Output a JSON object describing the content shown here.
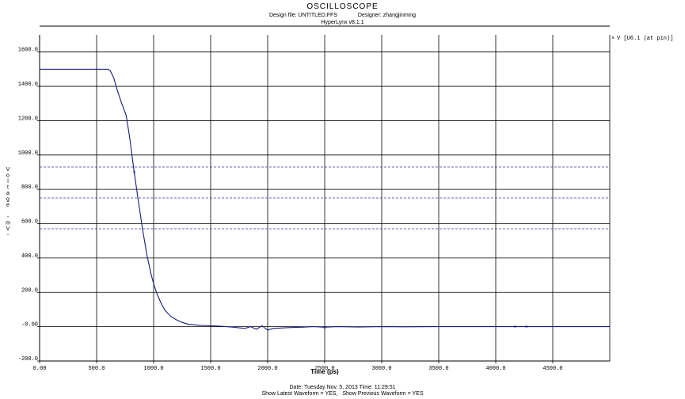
{
  "header": {
    "title": "OSCILLOSCOPE",
    "design_file": "Design file: UNTITLED.FFS",
    "designer": "Designer: zhangjinming",
    "version": "HyperLynx v8.1.1"
  },
  "footer": {
    "date_time": "Date: Tuesday Nov. 5, 2013   Time: 11:29:51",
    "show_latest": "Show Latest Waveform = YES,",
    "show_previous": "Show Previous Waveform = YES"
  },
  "colors": {
    "waveform": "#1a1a7a",
    "reference": "#3a3aa0",
    "grid": "#000000"
  },
  "chart_data": {
    "type": "line",
    "xlabel": "Time (ps)",
    "ylabel": "Voltage -mV-",
    "xlim": [
      0,
      5000
    ],
    "ylim": [
      -200,
      1700
    ],
    "x_ticks": [
      "0.00",
      "500.0",
      "1000.0",
      "1500.0",
      "2000.0",
      "2500.0",
      "3000.0",
      "3500.0",
      "4000.0",
      "4500.0"
    ],
    "x_tick_values": [
      0,
      500,
      1000,
      1500,
      2000,
      2500,
      3000,
      3500,
      4000,
      4500
    ],
    "y_ticks": [
      "-200.0",
      "-0.00",
      "200.0",
      "400.0",
      "600.0",
      "800.0",
      "1000.0",
      "1200.0",
      "1400.0",
      "1600.0"
    ],
    "y_tick_values": [
      -200,
      0,
      200,
      400,
      600,
      800,
      1000,
      1200,
      1400,
      1600
    ],
    "grid": true,
    "reference_levels": [
      930,
      750,
      570
    ],
    "legend_position": "top-right",
    "series": [
      {
        "name": "V [U6.1 (at pin)]",
        "x": [
          0,
          500,
          570,
          600,
          620,
          650,
          680,
          720,
          760,
          790,
          810,
          830,
          860,
          900,
          940,
          980,
          1000,
          1030,
          1070,
          1100,
          1150,
          1200,
          1250,
          1300,
          1400,
          1500,
          1600,
          1700,
          1800,
          1850,
          1900,
          1950,
          2000,
          2050,
          2100,
          2200,
          2300,
          2400,
          2500,
          2600,
          2800,
          3000,
          3200,
          3500,
          4000,
          4500,
          5000
        ],
        "y": [
          1500,
          1500,
          1500,
          1500,
          1490,
          1450,
          1380,
          1300,
          1230,
          1100,
          1000,
          900,
          760,
          580,
          420,
          300,
          250,
          190,
          130,
          95,
          60,
          40,
          25,
          15,
          8,
          5,
          2,
          -3,
          -10,
          0,
          -15,
          5,
          -20,
          -10,
          -8,
          -5,
          -3,
          0,
          -3,
          0,
          -2,
          0,
          -1,
          0,
          0,
          0,
          0
        ]
      }
    ]
  }
}
